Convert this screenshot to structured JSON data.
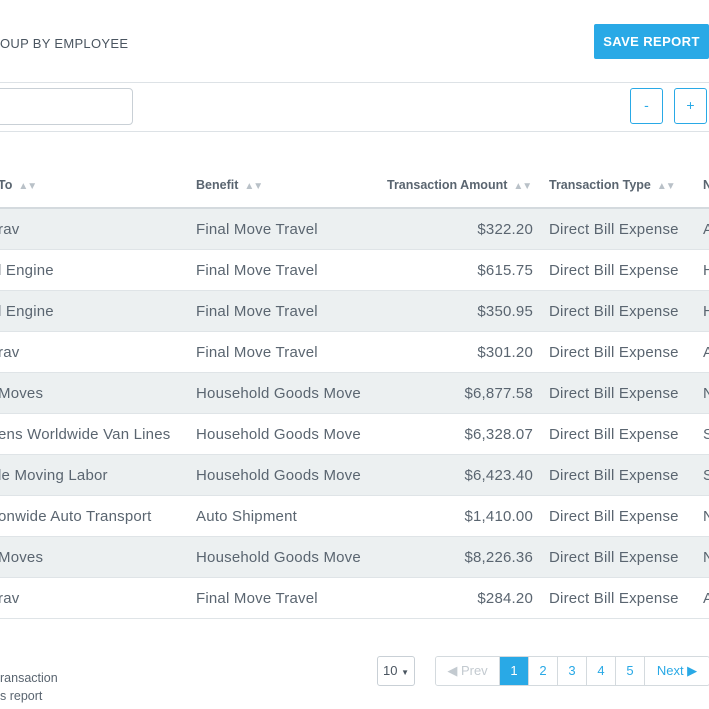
{
  "header": {
    "group_label": "OUP BY EMPLOYEE",
    "save_label": "SAVE REPORT"
  },
  "toolbar": {
    "search_value": "",
    "zoom_out": "-",
    "zoom_in": "+"
  },
  "table": {
    "columns": {
      "paid_to": "To",
      "benefit": "Benefit",
      "amount": "Transaction Amount",
      "type": "Transaction Type",
      "extra": "N"
    },
    "sort_icon": "sort-icon",
    "rows": [
      {
        "paid_to": "rav",
        "benefit": "Final Move Travel",
        "amount": "$322.20",
        "type": "Direct Bill Expense",
        "extra": "A"
      },
      {
        "paid_to": "l Engine",
        "benefit": "Final Move Travel",
        "amount": "$615.75",
        "type": "Direct Bill Expense",
        "extra": "H"
      },
      {
        "paid_to": "l Engine",
        "benefit": "Final Move Travel",
        "amount": "$350.95",
        "type": "Direct Bill Expense",
        "extra": "H"
      },
      {
        "paid_to": "rav",
        "benefit": "Final Move Travel",
        "amount": "$301.20",
        "type": "Direct Bill Expense",
        "extra": "A"
      },
      {
        "paid_to": "Moves",
        "benefit": "Household Goods Move",
        "amount": "$6,877.58",
        "type": "Direct Bill Expense",
        "extra": "N"
      },
      {
        "paid_to": "ens Worldwide Van Lines",
        "benefit": "Household Goods Move",
        "amount": "$6,328.07",
        "type": "Direct Bill Expense",
        "extra": "S"
      },
      {
        "paid_to": "le Moving Labor",
        "benefit": "Household Goods Move",
        "amount": "$6,423.40",
        "type": "Direct Bill Expense",
        "extra": "S"
      },
      {
        "paid_to": "onwide Auto Transport",
        "benefit": "Auto Shipment",
        "amount": "$1,410.00",
        "type": "Direct Bill Expense",
        "extra": "N"
      },
      {
        "paid_to": "Moves",
        "benefit": "Household Goods Move",
        "amount": "$8,226.36",
        "type": "Direct Bill Expense",
        "extra": "N"
      },
      {
        "paid_to": "rav",
        "benefit": "Final Move Travel",
        "amount": "$284.20",
        "type": "Direct Bill Expense",
        "extra": "A"
      }
    ]
  },
  "footer": {
    "note_line1": "ransaction",
    "note_line2": "s report",
    "page_size": "10",
    "prev_label": "◀ Prev",
    "next_label": "Next ▶",
    "pages": [
      "1",
      "2",
      "3",
      "4",
      "5"
    ],
    "active_page": "1"
  },
  "colors": {
    "accent": "#29a9e6",
    "row_alt": "#ecf0f1",
    "text": "#5a6570"
  }
}
